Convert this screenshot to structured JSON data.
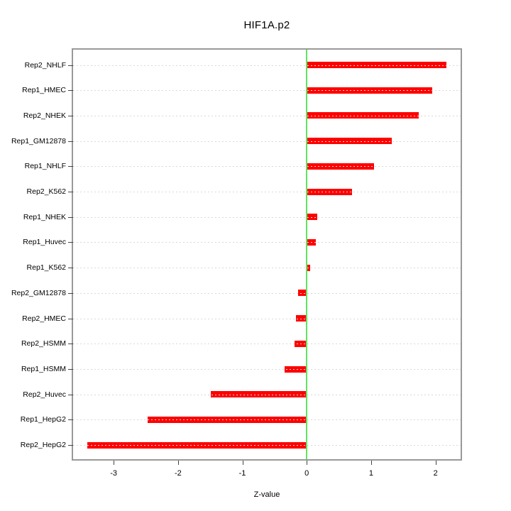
{
  "chart_data": {
    "type": "bar",
    "orientation": "horizontal",
    "title": "HIF1A.p2",
    "xlabel": "Z-value",
    "categories": [
      "Rep2_NHLF",
      "Rep1_HMEC",
      "Rep2_NHEK",
      "Rep1_GM12878",
      "Rep1_NHLF",
      "Rep2_K562",
      "Rep1_NHEK",
      "Rep1_Huvec",
      "Rep1_K562",
      "Rep2_GM12878",
      "Rep2_HMEC",
      "Rep2_HSMM",
      "Rep1_HSMM",
      "Rep2_Huvec",
      "Rep1_HepG2",
      "Rep2_HepG2"
    ],
    "values": [
      2.17,
      1.95,
      1.74,
      1.32,
      1.04,
      0.7,
      0.16,
      0.14,
      0.05,
      -0.14,
      -0.17,
      -0.19,
      -0.34,
      -1.49,
      -2.47,
      -3.41
    ],
    "xticks": [
      -3,
      -2,
      -1,
      0,
      1,
      2
    ],
    "xlim": [
      -3.63,
      2.39
    ],
    "grid": "dotted-horizontal",
    "legend": "none",
    "colors": {
      "bar": "#ff0000",
      "zero_line": "#5fe55f",
      "grid": "#d9d9d9",
      "box": "#999999",
      "tick": "#444444",
      "text": "#000000"
    }
  }
}
